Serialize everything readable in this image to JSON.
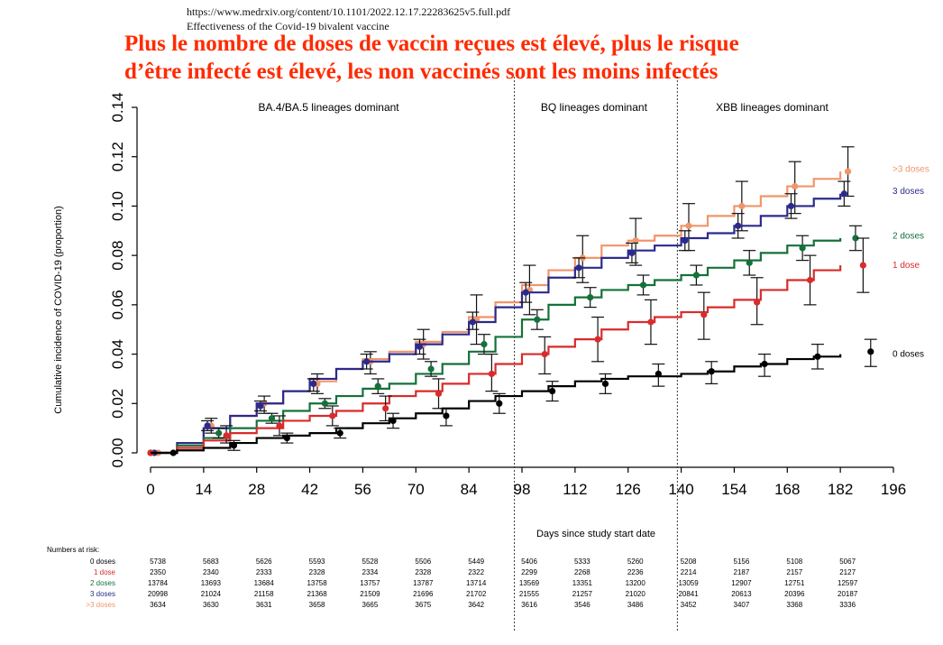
{
  "source": {
    "url": "https://www.medrxiv.org/content/10.1101/2022.12.17.22283625v5.full.pdf",
    "title": "Effectiveness of the Covid-19 bivalent vaccine"
  },
  "headline": {
    "line1": "Plus le nombre de doses de vaccin reçues est élevé, plus le risque",
    "line2": "d’être infecté est élevé, les non vaccinés sont les moins infectés"
  },
  "chart_data": {
    "type": "line",
    "xlabel": "Days since study start date",
    "ylabel": "Cumulative incidence of COVID-19 (proportion)",
    "xlim": [
      0,
      196
    ],
    "ylim": [
      0,
      0.14
    ],
    "x_ticks": [
      "0",
      "14",
      "28",
      "42",
      "56",
      "70",
      "84",
      "98",
      "112",
      "126",
      "140",
      "154",
      "168",
      "182",
      "196"
    ],
    "y_ticks": [
      "0.00",
      "0.02",
      "0.04",
      "0.06",
      "0.08",
      "0.10",
      "0.12",
      "0.14"
    ],
    "phase_lines": [
      96,
      139
    ],
    "phases": [
      {
        "label": "BA.4/BA.5 lineages dominant",
        "x": 47
      },
      {
        "label": "BQ lineages dominant",
        "x": 117
      },
      {
        "label": "XBB lineages dominant",
        "x": 164
      }
    ],
    "series": [
      {
        "name": ">3 doses",
        "color": "#f0956a",
        "x": [
          0,
          7,
          14,
          21,
          28,
          35,
          42,
          49,
          56,
          63,
          70,
          77,
          84,
          91,
          98,
          105,
          112,
          119,
          126,
          133,
          140,
          147,
          154,
          161,
          168,
          175,
          182
        ],
        "y": [
          0,
          0.004,
          0.01,
          0.015,
          0.02,
          0.025,
          0.029,
          0.034,
          0.038,
          0.041,
          0.045,
          0.049,
          0.055,
          0.061,
          0.068,
          0.074,
          0.079,
          0.084,
          0.086,
          0.088,
          0.092,
          0.096,
          0.1,
          0.104,
          0.108,
          0.111,
          0.114
        ],
        "points": [
          {
            "x": 2,
            "y": 0.0,
            "lo": 0.0,
            "hi": 0.0
          },
          {
            "x": 16,
            "y": 0.011,
            "lo": 0.008,
            "hi": 0.014
          },
          {
            "x": 30,
            "y": 0.02,
            "lo": 0.016,
            "hi": 0.023
          },
          {
            "x": 44,
            "y": 0.028,
            "lo": 0.024,
            "hi": 0.032
          },
          {
            "x": 58,
            "y": 0.037,
            "lo": 0.032,
            "hi": 0.041
          },
          {
            "x": 72,
            "y": 0.044,
            "lo": 0.038,
            "hi": 0.05
          },
          {
            "x": 86,
            "y": 0.054,
            "lo": 0.044,
            "hi": 0.064
          },
          {
            "x": 100,
            "y": 0.066,
            "lo": 0.056,
            "hi": 0.076
          },
          {
            "x": 114,
            "y": 0.079,
            "lo": 0.069,
            "hi": 0.088
          },
          {
            "x": 128,
            "y": 0.086,
            "lo": 0.076,
            "hi": 0.095
          },
          {
            "x": 142,
            "y": 0.092,
            "lo": 0.082,
            "hi": 0.101
          },
          {
            "x": 156,
            "y": 0.1,
            "lo": 0.09,
            "hi": 0.11
          },
          {
            "x": 170,
            "y": 0.108,
            "lo": 0.097,
            "hi": 0.118
          },
          {
            "x": 184,
            "y": 0.114,
            "lo": 0.104,
            "hi": 0.124
          }
        ]
      },
      {
        "name": "3 doses",
        "color": "#2b2a8c",
        "x": [
          0,
          7,
          14,
          21,
          28,
          35,
          42,
          49,
          56,
          63,
          70,
          77,
          84,
          91,
          98,
          105,
          112,
          119,
          126,
          133,
          140,
          147,
          154,
          161,
          168,
          175,
          182
        ],
        "y": [
          0,
          0.004,
          0.01,
          0.015,
          0.02,
          0.025,
          0.03,
          0.034,
          0.037,
          0.04,
          0.044,
          0.048,
          0.053,
          0.059,
          0.065,
          0.071,
          0.075,
          0.079,
          0.082,
          0.084,
          0.087,
          0.089,
          0.092,
          0.096,
          0.1,
          0.103,
          0.105
        ],
        "points": [
          {
            "x": 1,
            "y": 0.0,
            "lo": 0.0,
            "hi": 0.0
          },
          {
            "x": 15,
            "y": 0.011,
            "lo": 0.009,
            "hi": 0.013
          },
          {
            "x": 29,
            "y": 0.019,
            "lo": 0.017,
            "hi": 0.021
          },
          {
            "x": 43,
            "y": 0.028,
            "lo": 0.025,
            "hi": 0.03
          },
          {
            "x": 57,
            "y": 0.037,
            "lo": 0.034,
            "hi": 0.04
          },
          {
            "x": 71,
            "y": 0.043,
            "lo": 0.04,
            "hi": 0.046
          },
          {
            "x": 85,
            "y": 0.053,
            "lo": 0.05,
            "hi": 0.057
          },
          {
            "x": 99,
            "y": 0.065,
            "lo": 0.061,
            "hi": 0.069
          },
          {
            "x": 113,
            "y": 0.075,
            "lo": 0.071,
            "hi": 0.079
          },
          {
            "x": 127,
            "y": 0.081,
            "lo": 0.077,
            "hi": 0.085
          },
          {
            "x": 141,
            "y": 0.086,
            "lo": 0.082,
            "hi": 0.09
          },
          {
            "x": 155,
            "y": 0.092,
            "lo": 0.087,
            "hi": 0.097
          },
          {
            "x": 169,
            "y": 0.1,
            "lo": 0.095,
            "hi": 0.105
          },
          {
            "x": 183,
            "y": 0.105,
            "lo": 0.1,
            "hi": 0.11
          }
        ]
      },
      {
        "name": "2 doses",
        "color": "#14713a",
        "x": [
          0,
          7,
          14,
          21,
          28,
          35,
          42,
          49,
          56,
          63,
          70,
          77,
          84,
          91,
          98,
          105,
          112,
          119,
          126,
          133,
          140,
          147,
          154,
          161,
          168,
          175,
          182
        ],
        "y": [
          0,
          0.003,
          0.006,
          0.01,
          0.013,
          0.017,
          0.02,
          0.023,
          0.026,
          0.028,
          0.032,
          0.036,
          0.041,
          0.047,
          0.054,
          0.06,
          0.063,
          0.066,
          0.068,
          0.07,
          0.072,
          0.075,
          0.078,
          0.081,
          0.084,
          0.086,
          0.087
        ],
        "points": [
          {
            "x": 0,
            "y": 0.0,
            "lo": 0.0,
            "hi": 0.0
          },
          {
            "x": 18,
            "y": 0.008,
            "lo": 0.006,
            "hi": 0.01
          },
          {
            "x": 32,
            "y": 0.014,
            "lo": 0.012,
            "hi": 0.016
          },
          {
            "x": 46,
            "y": 0.02,
            "lo": 0.018,
            "hi": 0.022
          },
          {
            "x": 60,
            "y": 0.027,
            "lo": 0.024,
            "hi": 0.03
          },
          {
            "x": 74,
            "y": 0.034,
            "lo": 0.031,
            "hi": 0.037
          },
          {
            "x": 88,
            "y": 0.044,
            "lo": 0.04,
            "hi": 0.048
          },
          {
            "x": 102,
            "y": 0.054,
            "lo": 0.05,
            "hi": 0.058
          },
          {
            "x": 116,
            "y": 0.063,
            "lo": 0.059,
            "hi": 0.067
          },
          {
            "x": 130,
            "y": 0.068,
            "lo": 0.064,
            "hi": 0.072
          },
          {
            "x": 144,
            "y": 0.072,
            "lo": 0.068,
            "hi": 0.076
          },
          {
            "x": 158,
            "y": 0.077,
            "lo": 0.072,
            "hi": 0.082
          },
          {
            "x": 172,
            "y": 0.083,
            "lo": 0.078,
            "hi": 0.088
          },
          {
            "x": 186,
            "y": 0.087,
            "lo": 0.082,
            "hi": 0.092
          }
        ]
      },
      {
        "name": "1 dose",
        "color": "#d92b2b",
        "x": [
          0,
          7,
          14,
          21,
          28,
          35,
          42,
          49,
          56,
          63,
          70,
          77,
          84,
          91,
          98,
          105,
          112,
          119,
          126,
          133,
          140,
          147,
          154,
          161,
          168,
          175,
          182
        ],
        "y": [
          0,
          0.002,
          0.005,
          0.008,
          0.01,
          0.013,
          0.015,
          0.017,
          0.02,
          0.023,
          0.025,
          0.028,
          0.032,
          0.036,
          0.04,
          0.043,
          0.046,
          0.05,
          0.053,
          0.055,
          0.057,
          0.059,
          0.062,
          0.066,
          0.07,
          0.074,
          0.076
        ],
        "points": [
          {
            "x": 0,
            "y": 0.0,
            "lo": 0.0,
            "hi": 0.0
          },
          {
            "x": 20,
            "y": 0.007,
            "lo": 0.004,
            "hi": 0.011
          },
          {
            "x": 34,
            "y": 0.011,
            "lo": 0.007,
            "hi": 0.015
          },
          {
            "x": 48,
            "y": 0.015,
            "lo": 0.011,
            "hi": 0.019
          },
          {
            "x": 62,
            "y": 0.018,
            "lo": 0.013,
            "hi": 0.023
          },
          {
            "x": 76,
            "y": 0.024,
            "lo": 0.018,
            "hi": 0.03
          },
          {
            "x": 90,
            "y": 0.032,
            "lo": 0.025,
            "hi": 0.04
          },
          {
            "x": 104,
            "y": 0.04,
            "lo": 0.032,
            "hi": 0.047
          },
          {
            "x": 118,
            "y": 0.046,
            "lo": 0.037,
            "hi": 0.055
          },
          {
            "x": 132,
            "y": 0.053,
            "lo": 0.044,
            "hi": 0.062
          },
          {
            "x": 146,
            "y": 0.056,
            "lo": 0.046,
            "hi": 0.065
          },
          {
            "x": 160,
            "y": 0.061,
            "lo": 0.052,
            "hi": 0.071
          },
          {
            "x": 174,
            "y": 0.07,
            "lo": 0.06,
            "hi": 0.08
          },
          {
            "x": 188,
            "y": 0.076,
            "lo": 0.065,
            "hi": 0.087
          }
        ]
      },
      {
        "name": "0 doses",
        "color": "#000000",
        "x": [
          0,
          7,
          14,
          21,
          28,
          35,
          42,
          49,
          56,
          63,
          70,
          77,
          84,
          91,
          98,
          105,
          112,
          119,
          126,
          133,
          140,
          147,
          154,
          161,
          168,
          175,
          182
        ],
        "y": [
          0,
          0.001,
          0.002,
          0.004,
          0.006,
          0.007,
          0.008,
          0.01,
          0.012,
          0.014,
          0.016,
          0.018,
          0.021,
          0.023,
          0.025,
          0.027,
          0.029,
          0.03,
          0.031,
          0.031,
          0.032,
          0.033,
          0.035,
          0.036,
          0.038,
          0.039,
          0.04
        ],
        "points": [
          {
            "x": 6,
            "y": 0.0,
            "lo": 0.0,
            "hi": 0.0
          },
          {
            "x": 22,
            "y": 0.003,
            "lo": 0.001,
            "hi": 0.005
          },
          {
            "x": 36,
            "y": 0.006,
            "lo": 0.004,
            "hi": 0.008
          },
          {
            "x": 50,
            "y": 0.008,
            "lo": 0.006,
            "hi": 0.01
          },
          {
            "x": 64,
            "y": 0.013,
            "lo": 0.01,
            "hi": 0.016
          },
          {
            "x": 78,
            "y": 0.015,
            "lo": 0.011,
            "hi": 0.018
          },
          {
            "x": 92,
            "y": 0.02,
            "lo": 0.016,
            "hi": 0.024
          },
          {
            "x": 106,
            "y": 0.025,
            "lo": 0.021,
            "hi": 0.029
          },
          {
            "x": 120,
            "y": 0.028,
            "lo": 0.024,
            "hi": 0.032
          },
          {
            "x": 134,
            "y": 0.032,
            "lo": 0.027,
            "hi": 0.036
          },
          {
            "x": 148,
            "y": 0.033,
            "lo": 0.028,
            "hi": 0.037
          },
          {
            "x": 162,
            "y": 0.036,
            "lo": 0.031,
            "hi": 0.04
          },
          {
            "x": 176,
            "y": 0.039,
            "lo": 0.034,
            "hi": 0.044
          },
          {
            "x": 190,
            "y": 0.041,
            "lo": 0.035,
            "hi": 0.046
          }
        ]
      }
    ]
  },
  "risk_table": {
    "title": "Numbers at risk:",
    "columns": [
      "0",
      "14",
      "28",
      "42",
      "56",
      "70",
      "84",
      "98",
      "112",
      "126",
      "140",
      "154",
      "168",
      "182"
    ],
    "rows": [
      {
        "label": "0 doses",
        "color": "#000000",
        "values": [
          "5738",
          "5683",
          "5626",
          "5593",
          "5528",
          "5506",
          "5449",
          "5406",
          "5333",
          "5260",
          "5208",
          "5156",
          "5108",
          "5067"
        ]
      },
      {
        "label": "1 dose",
        "color": "#d92b2b",
        "values": [
          "2350",
          "2340",
          "2333",
          "2328",
          "2334",
          "2328",
          "2322",
          "2299",
          "2268",
          "2236",
          "2214",
          "2187",
          "2157",
          "2127"
        ]
      },
      {
        "label": "2 doses",
        "color": "#14713a",
        "values": [
          "13784",
          "13693",
          "13684",
          "13758",
          "13757",
          "13787",
          "13714",
          "13569",
          "13351",
          "13200",
          "13059",
          "12907",
          "12751",
          "12597"
        ]
      },
      {
        "label": "3 doses",
        "color": "#2b2a8c",
        "values": [
          "20998",
          "21024",
          "21158",
          "21368",
          "21509",
          "21696",
          "21702",
          "21555",
          "21257",
          "21020",
          "20841",
          "20613",
          "20396",
          "20187"
        ]
      },
      {
        "label": ">3 doses",
        "color": "#f0956a",
        "values": [
          "3634",
          "3630",
          "3631",
          "3658",
          "3665",
          "3675",
          "3642",
          "3616",
          "3546",
          "3486",
          "3452",
          "3407",
          "3368",
          "3336"
        ]
      }
    ]
  }
}
